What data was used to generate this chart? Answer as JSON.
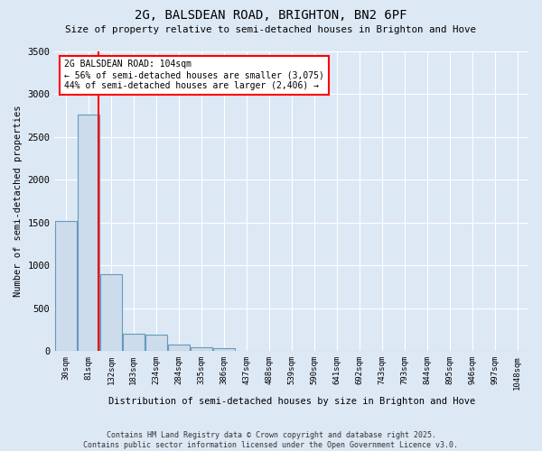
{
  "title_line1": "2G, BALSDEAN ROAD, BRIGHTON, BN2 6PF",
  "title_line2": "Size of property relative to semi-detached houses in Brighton and Hove",
  "xlabel": "Distribution of semi-detached houses by size in Brighton and Hove",
  "ylabel": "Number of semi-detached properties",
  "annotation_title": "2G BALSDEAN ROAD: 104sqm",
  "annotation_line2": "← 56% of semi-detached houses are smaller (3,075)",
  "annotation_line3": "44% of semi-detached houses are larger (2,406) →",
  "categories": [
    "30sqm",
    "81sqm",
    "132sqm",
    "183sqm",
    "234sqm",
    "284sqm",
    "335sqm",
    "386sqm",
    "437sqm",
    "488sqm",
    "539sqm",
    "590sqm",
    "641sqm",
    "692sqm",
    "743sqm",
    "793sqm",
    "844sqm",
    "895sqm",
    "946sqm",
    "997sqm",
    "1048sqm"
  ],
  "values": [
    1520,
    2760,
    900,
    200,
    190,
    80,
    45,
    30,
    5,
    2,
    1,
    0,
    0,
    0,
    0,
    0,
    0,
    0,
    0,
    0,
    0
  ],
  "bar_color": "#ccdcec",
  "bar_edge_color": "#6699bb",
  "ylim": [
    0,
    3500
  ],
  "yticks": [
    0,
    500,
    1000,
    1500,
    2000,
    2500,
    3000,
    3500
  ],
  "bg_color": "#dde8f5",
  "grid_color": "#ffffff",
  "footer_line1": "Contains HM Land Registry data © Crown copyright and database right 2025.",
  "footer_line2": "Contains public sector information licensed under the Open Government Licence v3.0."
}
